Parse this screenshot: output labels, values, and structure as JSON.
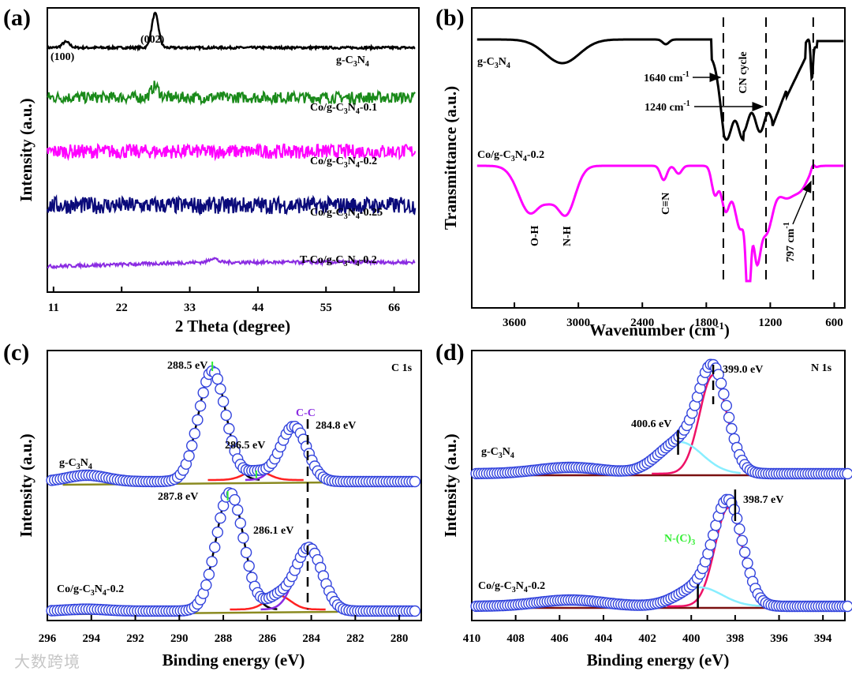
{
  "watermark": "大数跨境",
  "colors": {
    "black": "#000000",
    "green": "#1a8a1a",
    "magenta": "#ff00ff",
    "navy": "#0a0a7a",
    "purple": "#8a2be2",
    "blue_marker": "#3344dd",
    "olive": "#8a8a20",
    "red": "#ff2222",
    "cyan": "#88eeff",
    "crimson": "#ee1166",
    "darkred": "#7a1010",
    "lime": "#33ee33"
  },
  "chart_data": [
    {
      "panel": "(a)",
      "type": "line",
      "xlabel": "2 Theta (degree)",
      "ylabel": "Intensity (a.u.)",
      "xlim": [
        10,
        70
      ],
      "xticks": [
        11,
        22,
        33,
        44,
        55,
        66
      ],
      "series": [
        {
          "name": "g-C3N4",
          "label_main": "g-C",
          "label_sub1": "3",
          "label_mid": "N",
          "label_sub2": "4",
          "label_tail": "",
          "color": "#000000",
          "baseline": 0.86,
          "noise": 0.004,
          "peaks": [
            [
              13.0,
              0.02,
              0.6
            ],
            [
              27.4,
              0.12,
              0.55
            ]
          ]
        },
        {
          "name": "Co/g-C3N4-0.1",
          "label_main": "Co/g-C",
          "label_sub1": "3",
          "label_mid": "N",
          "label_sub2": "4",
          "label_tail": "-0.1",
          "color": "#1a8a1a",
          "baseline": 0.685,
          "noise": 0.02,
          "peaks": [
            [
              27.4,
              0.04,
              0.6
            ]
          ]
        },
        {
          "name": "Co/g-C3N4-0.2",
          "label_main": "Co/g-C",
          "label_sub1": "3",
          "label_mid": "N",
          "label_sub2": "4",
          "label_tail": "-0.2",
          "color": "#ff00ff",
          "baseline": 0.495,
          "noise": 0.025,
          "peaks": []
        },
        {
          "name": "Co/g-C3N4-0.25",
          "label_main": "Co/g-C",
          "label_sub1": "3",
          "label_mid": "N",
          "label_sub2": "4",
          "label_tail": "-0.25",
          "color": "#0a0a7a",
          "baseline": 0.305,
          "noise": 0.03,
          "peaks": []
        },
        {
          "name": "T-Co/g-C3N4-0.2",
          "label_main": "T-Co/g-C",
          "label_sub1": "3",
          "label_mid": "N",
          "label_sub2": "4",
          "label_tail": "-0.2",
          "color": "#8a2be2",
          "baseline": 0.09,
          "noise": 0.006,
          "peaks": [
            [
              36.8,
              0.015,
              0.6
            ]
          ]
        }
      ],
      "annotations": [
        {
          "text": "(100)",
          "x": 13.0,
          "y": 0.925
        },
        {
          "text": "(002)",
          "x": 27.4,
          "y": 0.995
        }
      ]
    },
    {
      "panel": "(b)",
      "type": "line",
      "xlabel": "Wavenumber (cm-1)",
      "xlabel_main": "Wavenumber (cm",
      "xlabel_sup": "-1",
      "xlabel_tail": ")",
      "ylabel": "Transmittance (a.u.)",
      "xlim": [
        4000,
        500
      ],
      "xticks": [
        3600,
        3000,
        2400,
        1800,
        1200,
        600
      ],
      "series": [
        {
          "name": "g-C3N4",
          "color": "#000000"
        },
        {
          "name": "Co/g-C3N4-0.2",
          "color": "#ff00ff"
        }
      ],
      "dashed_lines_x": [
        1640,
        1240,
        797
      ],
      "annotations": [
        {
          "text": "1640 cm",
          "sup": "-1"
        },
        {
          "text": "1240 cm",
          "sup": "-1"
        },
        {
          "text": "CN cycle"
        },
        {
          "text": "O-H"
        },
        {
          "text": "N-H"
        },
        {
          "text": "C≡N"
        },
        {
          "text": "797 cm",
          "sup": "-1"
        }
      ]
    },
    {
      "panel": "(c)",
      "type": "scatter",
      "element": "C 1s",
      "xlabel": "Binding energy (eV)",
      "ylabel": "Intensity (a.u.)",
      "xlim": [
        296,
        279
      ],
      "xticks": [
        296,
        294,
        292,
        290,
        288,
        286,
        284,
        282,
        280
      ],
      "peaks": {
        "g-C3N4": [
          288.5,
          286.5,
          284.8
        ],
        "Co/g-C3N4-0.2": [
          287.8,
          286.1,
          284.1
        ]
      },
      "annotations": [
        "288.5 eV",
        "286.5 eV",
        "284.8 eV",
        "C-C",
        "287.8 eV",
        "286.1 eV"
      ]
    },
    {
      "panel": "(d)",
      "type": "scatter",
      "element": "N 1s",
      "xlabel": "Binding energy (eV)",
      "ylabel": "Intensity (a.u.)",
      "xlim": [
        410,
        393
      ],
      "xticks": [
        410,
        408,
        406,
        404,
        402,
        400,
        398,
        396,
        394
      ],
      "peaks": {
        "g-C3N4": [
          400.6,
          399.0
        ],
        "Co/g-C3N4-0.2": [
          399.7,
          398.7
        ]
      },
      "annotations": [
        "399.0 eV",
        "400.6 eV",
        "398.7 eV",
        "N-(C)",
        "3"
      ]
    }
  ]
}
